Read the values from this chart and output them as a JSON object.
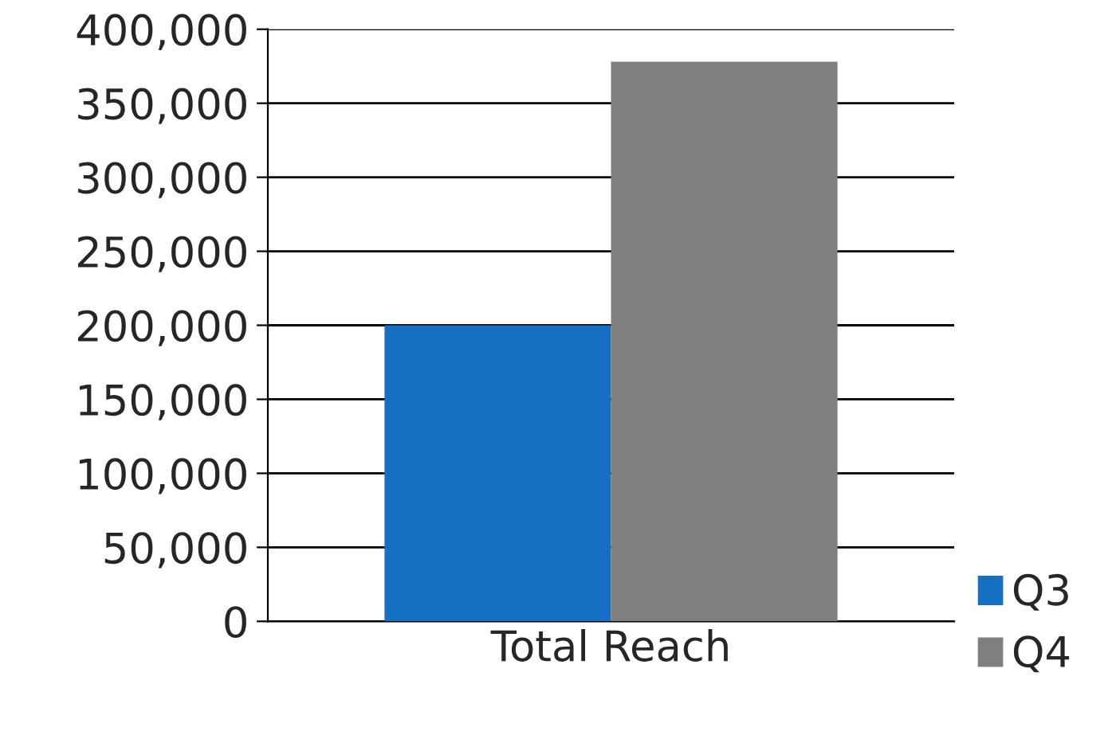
{
  "chart_data": {
    "type": "bar",
    "categories": [
      "Total Reach"
    ],
    "series": [
      {
        "name": "Q3",
        "color": "#1570c4",
        "values": [
          200000
        ]
      },
      {
        "name": "Q4",
        "color": "#7f7f7f",
        "values": [
          378000
        ]
      }
    ],
    "ylim": [
      0,
      400000
    ],
    "yticks": [
      {
        "value": 0,
        "label": "0"
      },
      {
        "value": 50000,
        "label": "50,000"
      },
      {
        "value": 100000,
        "label": "100,000"
      },
      {
        "value": 150000,
        "label": "150,000"
      },
      {
        "value": 200000,
        "label": "200,000"
      },
      {
        "value": 250000,
        "label": "250,000"
      },
      {
        "value": 300000,
        "label": "300,000"
      },
      {
        "value": 350000,
        "label": "350,000"
      },
      {
        "value": 400000,
        "label": "400,000"
      }
    ],
    "grid": "y",
    "legend": "bottom right"
  }
}
